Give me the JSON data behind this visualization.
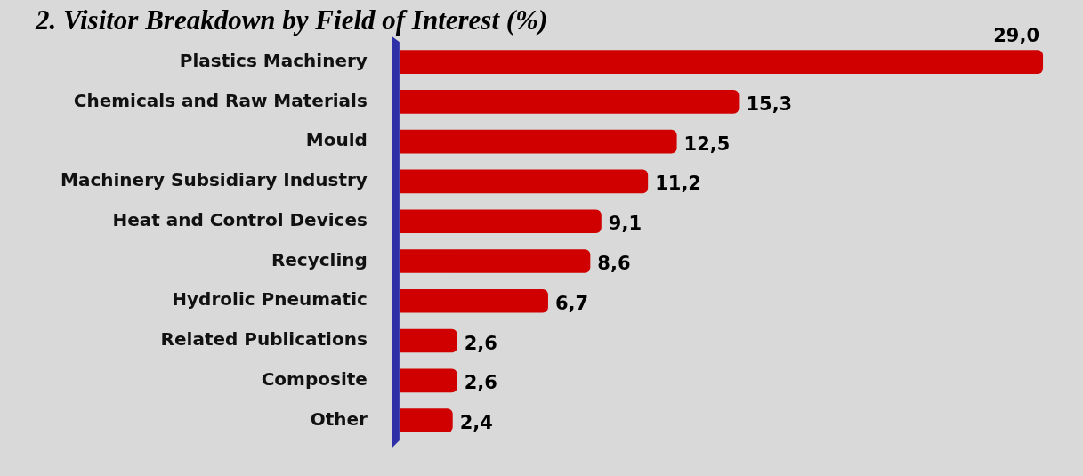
{
  "chart_data": {
    "type": "bar",
    "orientation": "horizontal",
    "title": "2. Visitor Breakdown by Field of Interest (%)",
    "categories": [
      "Plastics Machinery",
      "Chemicals and Raw Materials",
      "Mould",
      "Machinery Subsidiary Industry",
      "Heat and Control Devices",
      "Recycling",
      "Hydrolic Pneumatic",
      "Related Publications",
      "Composite",
      "Other"
    ],
    "values": [
      29.0,
      15.3,
      12.5,
      11.2,
      9.1,
      8.6,
      6.7,
      2.6,
      2.6,
      2.4
    ],
    "value_labels": [
      "29,0",
      "15,3",
      "12,5",
      "11,2",
      "9,1",
      "8,6",
      "6,7",
      "2,6",
      "2,6",
      "2,4"
    ],
    "color": "#d00000"
  }
}
